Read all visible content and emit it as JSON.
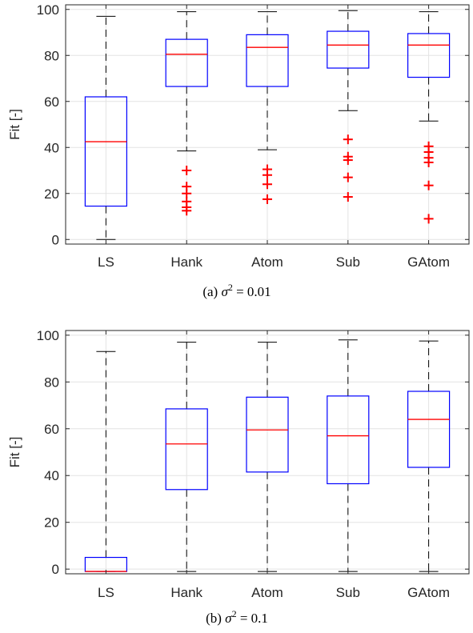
{
  "chart_data": [
    {
      "type": "boxplot",
      "caption": {
        "prefix": "(a) ",
        "symbol": "σ",
        "sup": "2",
        "suffix": " = 0.01"
      },
      "ylabel": "Fit [-]",
      "ylim": [
        -2,
        102
      ],
      "yticks": [
        0,
        20,
        40,
        60,
        80,
        100
      ],
      "grid": true,
      "colors": {
        "box": "#0000ff",
        "median": "#ff0000",
        "outlier": "#ff0000",
        "whisker": "#000000"
      },
      "categories": [
        "LS",
        "Hank",
        "Atom",
        "Sub",
        "GAtom"
      ],
      "boxes": [
        {
          "label": "LS",
          "whisker_low": 0,
          "q1": 14.5,
          "median": 42.5,
          "q3": 62,
          "whisker_high": 97,
          "outliers": []
        },
        {
          "label": "Hank",
          "whisker_low": 38.5,
          "q1": 66.5,
          "median": 80.5,
          "q3": 87,
          "whisker_high": 99,
          "outliers": [
            30,
            23,
            20,
            16.5,
            14,
            12.5
          ]
        },
        {
          "label": "Atom",
          "whisker_low": 39,
          "q1": 66.5,
          "median": 83.5,
          "q3": 89,
          "whisker_high": 99,
          "outliers": [
            30.5,
            28,
            24,
            17.5
          ]
        },
        {
          "label": "Sub",
          "whisker_low": 56,
          "q1": 74.5,
          "median": 84.5,
          "q3": 90.5,
          "whisker_high": 99.5,
          "outliers": [
            43.5,
            36,
            34.5,
            27,
            18.5
          ]
        },
        {
          "label": "GAtom",
          "whisker_low": 51.5,
          "q1": 70.5,
          "median": 84.5,
          "q3": 89.5,
          "whisker_high": 99,
          "outliers": [
            40.5,
            38,
            35.5,
            33.5,
            23.5,
            9
          ]
        }
      ]
    },
    {
      "type": "boxplot",
      "caption": {
        "prefix": "(b) ",
        "symbol": "σ",
        "sup": "2",
        "suffix": " = 0.1"
      },
      "ylabel": "Fit [-]",
      "ylim": [
        -2,
        102
      ],
      "yticks": [
        0,
        20,
        40,
        60,
        80,
        100
      ],
      "grid": true,
      "colors": {
        "box": "#0000ff",
        "median": "#ff0000",
        "outlier": "#ff0000",
        "whisker": "#000000"
      },
      "categories": [
        "LS",
        "Hank",
        "Atom",
        "Sub",
        "GAtom"
      ],
      "boxes": [
        {
          "label": "LS",
          "whisker_low": -1,
          "q1": -1,
          "median": -1,
          "q3": 5,
          "whisker_high": 93,
          "outliers": []
        },
        {
          "label": "Hank",
          "whisker_low": -1,
          "q1": 34,
          "median": 53.5,
          "q3": 68.5,
          "whisker_high": 97,
          "outliers": []
        },
        {
          "label": "Atom",
          "whisker_low": -1,
          "q1": 41.5,
          "median": 59.5,
          "q3": 73.5,
          "whisker_high": 97,
          "outliers": []
        },
        {
          "label": "Sub",
          "whisker_low": -1,
          "q1": 36.5,
          "median": 57,
          "q3": 74,
          "whisker_high": 98,
          "outliers": []
        },
        {
          "label": "GAtom",
          "whisker_low": -1,
          "q1": 43.5,
          "median": 64,
          "q3": 76,
          "whisker_high": 97.5,
          "outliers": []
        }
      ]
    }
  ]
}
